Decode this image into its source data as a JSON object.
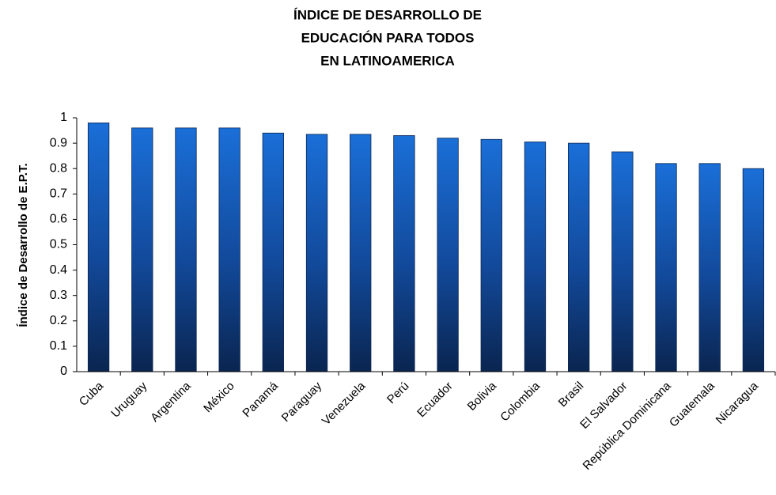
{
  "chart_data": {
    "type": "bar",
    "title": [
      "ÍNDICE DE DESARROLLO DE",
      "EDUCACIÓN PARA TODOS",
      "EN LATINOAMERICA"
    ],
    "y_label": "Índice de Desarrollo de E.P.T.",
    "categories": [
      "Cuba",
      "Uruguay",
      "Argentina",
      "México",
      "Panamá",
      "Paraguay",
      "Venezuela",
      "Perú",
      "Ecuador",
      "Bolivia",
      "Colombia",
      "Brasil",
      "El Salvador",
      "República Dominicana",
      "Guatemala",
      "Nicaragua"
    ],
    "values": [
      0.98,
      0.96,
      0.96,
      0.96,
      0.94,
      0.935,
      0.935,
      0.93,
      0.92,
      0.915,
      0.905,
      0.9,
      0.866,
      0.82,
      0.82,
      0.8
    ],
    "color": "#1a6fd8",
    "ylim": [
      0,
      1
    ],
    "yticks": [
      0,
      0.1,
      0.2,
      0.3,
      0.4,
      0.5,
      0.6,
      0.7,
      0.8,
      0.9,
      1
    ],
    "grid": false
  }
}
